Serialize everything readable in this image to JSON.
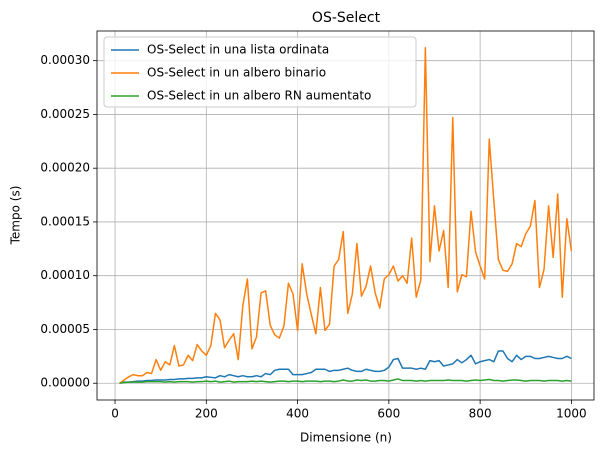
{
  "chart_data": {
    "type": "line",
    "title": "OS-Select",
    "xlabel": "Dimensione (n)",
    "ylabel": "Tempo (s)",
    "x": [
      10,
      20,
      30,
      40,
      50,
      60,
      70,
      80,
      90,
      100,
      110,
      120,
      130,
      140,
      150,
      160,
      170,
      180,
      190,
      200,
      210,
      220,
      230,
      240,
      250,
      260,
      270,
      280,
      290,
      300,
      310,
      320,
      330,
      340,
      350,
      360,
      370,
      380,
      390,
      400,
      410,
      420,
      430,
      440,
      450,
      460,
      470,
      480,
      490,
      500,
      510,
      520,
      530,
      540,
      550,
      560,
      570,
      580,
      590,
      600,
      610,
      620,
      630,
      640,
      650,
      660,
      670,
      680,
      690,
      700,
      710,
      720,
      730,
      740,
      750,
      760,
      770,
      780,
      790,
      800,
      810,
      820,
      830,
      840,
      850,
      860,
      870,
      880,
      890,
      900,
      910,
      920,
      930,
      940,
      950,
      960,
      970,
      980,
      990,
      1000
    ],
    "series": [
      {
        "name": "OS-Select in una lista ordinata",
        "color": "#1f77b4",
        "values": [
          5e-07,
          1e-06,
          1e-06,
          1.5e-06,
          2e-06,
          2e-06,
          2.5e-06,
          2.5e-06,
          3e-06,
          3e-06,
          3e-06,
          3.5e-06,
          3.5e-06,
          4e-06,
          4e-06,
          4.5e-06,
          4.5e-06,
          5e-06,
          5e-06,
          6e-06,
          5.5e-06,
          5e-06,
          7e-06,
          6e-06,
          8e-06,
          7e-06,
          6e-06,
          7e-06,
          6e-06,
          6e-06,
          7e-06,
          6e-06,
          9e-06,
          8e-06,
          1.2e-05,
          1.3e-05,
          1.3e-05,
          1.3e-05,
          8e-06,
          8e-06,
          8e-06,
          9e-06,
          1e-05,
          1.3e-05,
          1.3e-05,
          1.3e-05,
          1.1e-05,
          1.2e-05,
          1.2e-05,
          1.3e-05,
          1.4e-05,
          1.2e-05,
          1.1e-05,
          1.1e-05,
          1.3e-05,
          1.2e-05,
          1.1e-05,
          1.1e-05,
          1.2e-05,
          1.5e-05,
          2.2e-05,
          2.3e-05,
          1.4e-05,
          1.4e-05,
          1.4e-05,
          1.3e-05,
          1.4e-05,
          1.3e-05,
          2.1e-05,
          2e-05,
          2.1e-05,
          1.6e-05,
          1.7e-05,
          1.8e-05,
          2.2e-05,
          1.9e-05,
          2.2e-05,
          2.6e-05,
          1.8e-05,
          2e-05,
          2.1e-05,
          2.2e-05,
          2e-05,
          3e-05,
          3e-05,
          2.3e-05,
          2e-05,
          2.6e-05,
          2.2e-05,
          2.5e-05,
          2.5e-05,
          2.3e-05,
          2.3e-05,
          2.4e-05,
          2.5e-05,
          2.4e-05,
          2.3e-05,
          2.3e-05,
          2.5e-05,
          2.3e-05
        ]
      },
      {
        "name": "OS-Select in un albero binario",
        "color": "#ff7f0e",
        "values": [
          0,
          3e-06,
          6e-06,
          8e-06,
          7e-06,
          7e-06,
          1e-05,
          9e-06,
          2.2e-05,
          1.2e-05,
          2e-05,
          1.7e-05,
          3.5e-05,
          1.6e-05,
          1.7e-05,
          2.6e-05,
          2.1e-05,
          3.6e-05,
          3e-05,
          2.6e-05,
          3.5e-05,
          6.5e-05,
          5.9e-05,
          3.3e-05,
          4e-05,
          4.6e-05,
          2.2e-05,
          7.2e-05,
          9.7e-05,
          3.2e-05,
          4.3e-05,
          8.4e-05,
          8.6e-05,
          5.4e-05,
          4.5e-05,
          4.2e-05,
          5.3e-05,
          9.3e-05,
          8.3e-05,
          4.9e-05,
          0.000111,
          8.3e-05,
          6.4e-05,
          4.6e-05,
          8.9e-05,
          4.9e-05,
          5.5e-05,
          0.000109,
          0.000115,
          0.000141,
          6.5e-05,
          8.3e-05,
          0.00013,
          8.1e-05,
          9e-05,
          0.000109,
          8.4e-05,
          7e-05,
          9.7e-05,
          0.000101,
          0.000109,
          9.5e-05,
          0.0001,
          9.3e-05,
          0.000135,
          8e-05,
          9.6e-05,
          0.000312,
          0.000113,
          0.000165,
          0.000123,
          0.000142,
          8.9e-05,
          0.000247,
          8.5e-05,
          0.000101,
          9.9e-05,
          0.00016,
          0.000122,
          0.000109,
          9.7e-05,
          0.000227,
          0.00017,
          0.000115,
          0.000105,
          0.000104,
          0.000111,
          0.00013,
          0.000127,
          0.000139,
          0.000146,
          0.00017,
          8.9e-05,
          0.000106,
          0.000165,
          0.000117,
          0.000176,
          8e-05,
          0.000153,
          0.000123
        ]
      },
      {
        "name": "OS-Select in un albero RN aumentato",
        "color": "#2ca02c",
        "values": [
          0,
          5e-07,
          1e-06,
          1e-06,
          1e-06,
          1e-06,
          1.5e-06,
          1.5e-06,
          1.5e-06,
          1.5e-06,
          1e-06,
          1.5e-06,
          1e-06,
          1.5e-06,
          1.5e-06,
          1.5e-06,
          1e-06,
          1.5e-06,
          1.5e-06,
          2e-06,
          1.5e-06,
          2e-06,
          1e-06,
          1.5e-06,
          2e-06,
          1e-06,
          1.5e-06,
          1.5e-06,
          1.5e-06,
          2e-06,
          1.5e-06,
          2e-06,
          1.5e-06,
          1e-06,
          1.5e-06,
          2e-06,
          2e-06,
          1.5e-06,
          2e-06,
          2e-06,
          1.5e-06,
          2e-06,
          2e-06,
          2e-06,
          1.5e-06,
          2e-06,
          2e-06,
          1.5e-06,
          2e-06,
          3e-06,
          2e-06,
          2e-06,
          3e-06,
          2.5e-06,
          3e-06,
          2e-06,
          2e-06,
          2.5e-06,
          2.5e-06,
          2e-06,
          3e-06,
          4e-06,
          2.5e-06,
          2.5e-06,
          2.5e-06,
          2e-06,
          2.5e-06,
          2e-06,
          2.5e-06,
          2.5e-06,
          2.5e-06,
          2.5e-06,
          3e-06,
          2.5e-06,
          2.5e-06,
          2.5e-06,
          2e-06,
          2.5e-06,
          3e-06,
          2.5e-06,
          3e-06,
          3.5e-06,
          2.5e-06,
          2.5e-06,
          2e-06,
          2.5e-06,
          3e-06,
          3e-06,
          2.5e-06,
          2e-06,
          2.5e-06,
          2.5e-06,
          2.5e-06,
          2e-06,
          2.5e-06,
          2.5e-06,
          2.5e-06,
          2e-06,
          2.5e-06,
          2e-06
        ]
      }
    ],
    "xlim": [
      -39.5,
      1049.5
    ],
    "xticks": [
      0,
      200,
      400,
      600,
      800,
      1000
    ],
    "ylim": [
      -1.56e-05,
      0.0003276
    ],
    "yticks": [
      {
        "value": 0,
        "label": "0.00000"
      },
      {
        "value": 5e-05,
        "label": "0.00005"
      },
      {
        "value": 0.0001,
        "label": "0.00010"
      },
      {
        "value": 0.00015,
        "label": "0.00015"
      },
      {
        "value": 0.0002,
        "label": "0.00020"
      },
      {
        "value": 0.00025,
        "label": "0.00025"
      },
      {
        "value": 0.0003,
        "label": "0.00030"
      }
    ],
    "grid": true,
    "legend": "upper-left"
  }
}
